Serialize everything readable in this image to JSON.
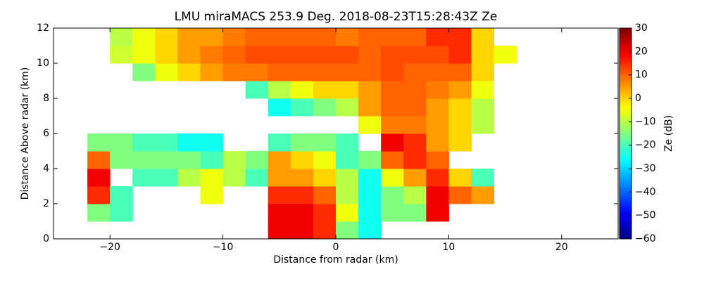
{
  "chart_data": {
    "type": "heatmap",
    "title": "LMU miraMACS 253.9 Deg. 2018-08-23T15:28:43Z  Ze",
    "x_label": "Distance from radar (km)",
    "y_label": "Distance Above radar  (km)",
    "colorbar_label": "Ze (dB)",
    "colormap": "jet",
    "xlim": [
      -25,
      25
    ],
    "ylim": [
      0,
      12
    ],
    "xticks": [
      {
        "value": -20,
        "label": "−20"
      },
      {
        "value": -10,
        "label": "−10"
      },
      0,
      10,
      20
    ],
    "yticks": [
      0,
      2,
      4,
      6,
      8,
      10,
      12
    ],
    "clim": [
      -60,
      30
    ],
    "cticks": [
      {
        "value": -60,
        "label": "−60"
      },
      {
        "value": -50,
        "label": "−50"
      },
      {
        "value": -40,
        "label": "−40"
      },
      {
        "value": -30,
        "label": "−30"
      },
      {
        "value": -20,
        "label": "−20"
      },
      {
        "value": -10,
        "label": "−10"
      },
      0,
      10,
      20,
      30
    ],
    "x_edges": [
      -22,
      -20,
      -18,
      -16,
      -14,
      -12,
      -10,
      -8,
      -6,
      -4,
      -2,
      0,
      2,
      4,
      6,
      8,
      10,
      12,
      14,
      16
    ],
    "y_edges": [
      0,
      1,
      2,
      3,
      4,
      5,
      6,
      7,
      8,
      9,
      10,
      11,
      12
    ],
    "values": [
      [
        null,
        null,
        null,
        null,
        null,
        null,
        null,
        null,
        20,
        20,
        15,
        -15,
        -25,
        null,
        null,
        null,
        null,
        null,
        null
      ],
      [
        -15,
        -20,
        null,
        null,
        null,
        null,
        null,
        null,
        20,
        20,
        15,
        -5,
        -25,
        -15,
        -15,
        20,
        null,
        null,
        null
      ],
      [
        15,
        -20,
        null,
        null,
        null,
        -5,
        null,
        null,
        15,
        15,
        10,
        -10,
        -25,
        -15,
        -10,
        20,
        10,
        5,
        null
      ],
      [
        20,
        null,
        -20,
        -20,
        -10,
        -5,
        -10,
        -20,
        5,
        5,
        0,
        -10,
        -25,
        -5,
        5,
        15,
        0,
        -20,
        null
      ],
      [
        10,
        -15,
        -15,
        -15,
        -15,
        -20,
        -10,
        -15,
        5,
        0,
        -5,
        -20,
        -15,
        10,
        15,
        10,
        null,
        null,
        null
      ],
      [
        -15,
        -15,
        -20,
        -20,
        -25,
        -25,
        null,
        null,
        -20,
        -15,
        -15,
        -20,
        null,
        20,
        15,
        5,
        0,
        null,
        null
      ],
      [
        null,
        null,
        null,
        null,
        null,
        null,
        null,
        null,
        null,
        null,
        null,
        null,
        -5,
        8,
        8,
        5,
        0,
        -10,
        null
      ],
      [
        null,
        null,
        null,
        null,
        null,
        null,
        null,
        null,
        -25,
        -20,
        -15,
        -10,
        5,
        10,
        10,
        5,
        0,
        -10,
        null
      ],
      [
        null,
        null,
        null,
        null,
        null,
        null,
        null,
        -20,
        -10,
        -5,
        0,
        0,
        5,
        10,
        10,
        8,
        5,
        -5,
        null
      ],
      [
        null,
        null,
        -15,
        -5,
        0,
        5,
        8,
        8,
        10,
        10,
        10,
        10,
        10,
        12,
        10,
        10,
        10,
        0,
        null
      ],
      [
        null,
        -8,
        -5,
        0,
        5,
        8,
        10,
        12,
        12,
        12,
        12,
        12,
        10,
        12,
        12,
        12,
        15,
        0,
        -5
      ],
      [
        null,
        -10,
        -5,
        0,
        5,
        5,
        8,
        10,
        10,
        10,
        10,
        8,
        10,
        10,
        10,
        15,
        15,
        0,
        null
      ]
    ]
  }
}
